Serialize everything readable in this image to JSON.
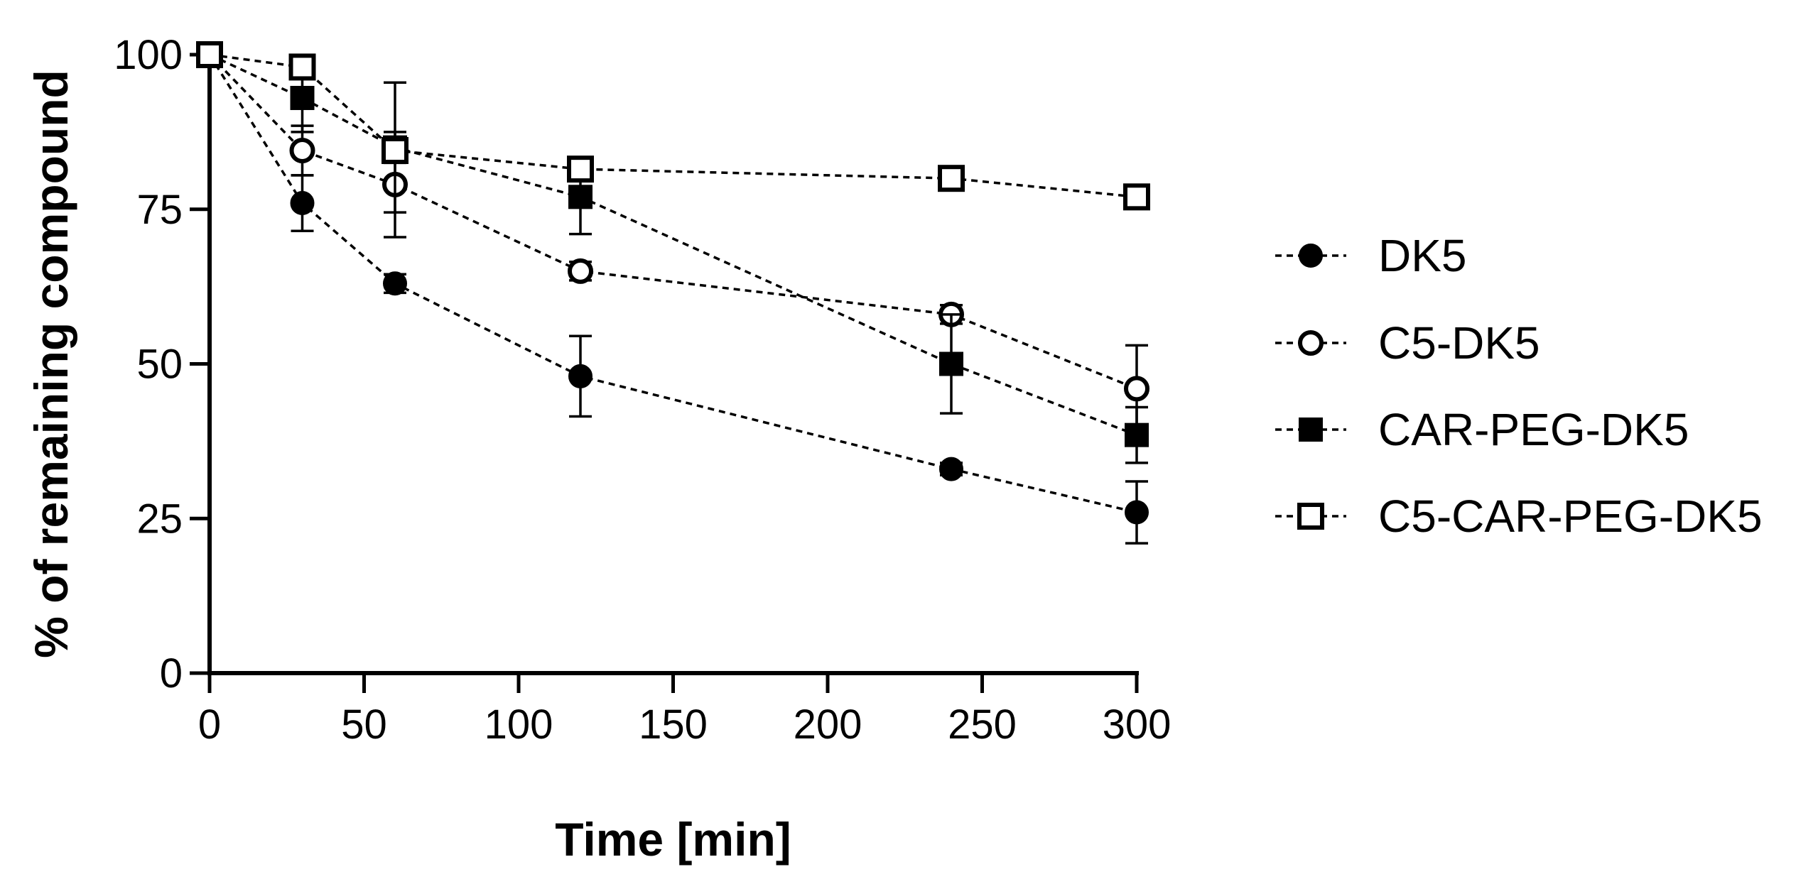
{
  "chart_data": {
    "type": "line",
    "title": "",
    "xlabel": "Time [min]",
    "ylabel": "% of remaining compound",
    "xlim": [
      0,
      300
    ],
    "ylim": [
      0,
      100
    ],
    "xticks": [
      0,
      50,
      100,
      150,
      200,
      250,
      300
    ],
    "yticks": [
      0,
      25,
      50,
      75,
      100
    ],
    "grid": false,
    "legend_position": "right",
    "series": [
      {
        "name": "DK5",
        "marker": "circle-filled",
        "x": [
          0,
          30,
          60,
          120,
          240,
          300
        ],
        "y": [
          100,
          76,
          63,
          48,
          33,
          26
        ],
        "err": [
          0,
          4.5,
          1.5,
          6.5,
          1,
          5
        ]
      },
      {
        "name": "C5-DK5",
        "marker": "circle-open",
        "x": [
          0,
          30,
          60,
          120,
          240,
          300
        ],
        "y": [
          100,
          84.5,
          79,
          65,
          58,
          46
        ],
        "err": [
          0,
          4,
          8.5,
          1.5,
          1.5,
          7
        ]
      },
      {
        "name": "CAR-PEG-DK5",
        "marker": "square-filled",
        "x": [
          0,
          30,
          60,
          120,
          240,
          300
        ],
        "y": [
          100,
          93,
          85,
          77,
          50,
          38.5
        ],
        "err": [
          0,
          5.5,
          10.5,
          6,
          8,
          4.5
        ]
      },
      {
        "name": "C5-CAR-PEG-DK5",
        "marker": "square-open",
        "x": [
          0,
          30,
          60,
          120,
          240,
          300
        ],
        "y": [
          100,
          98,
          84.5,
          81.5,
          80,
          77
        ],
        "err": [
          0,
          1,
          2,
          1.5,
          1,
          1
        ]
      }
    ]
  }
}
